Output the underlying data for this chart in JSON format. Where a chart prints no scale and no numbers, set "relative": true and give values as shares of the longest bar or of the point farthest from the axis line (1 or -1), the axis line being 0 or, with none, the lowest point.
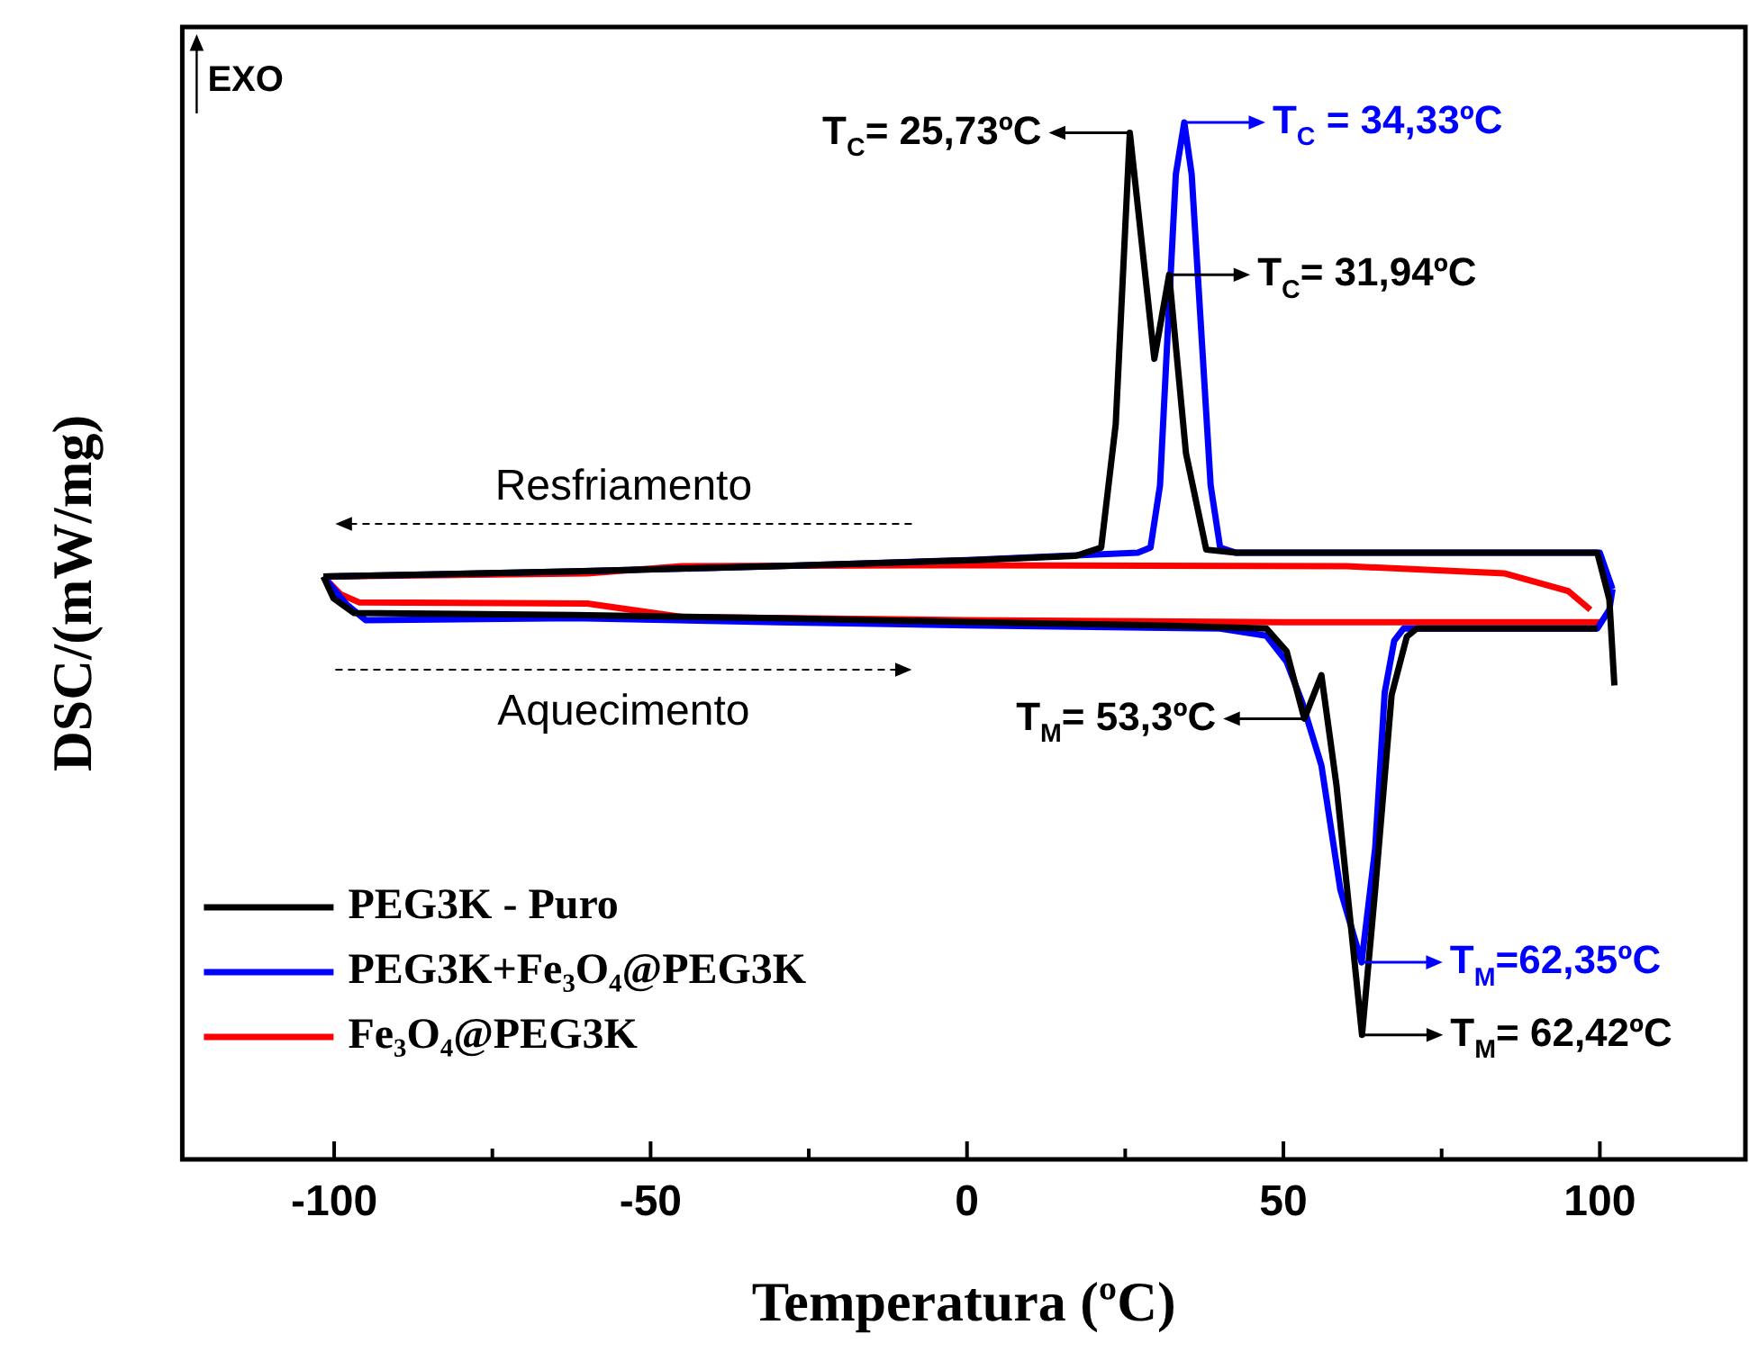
{
  "chart_data": {
    "type": "line",
    "relative": true,
    "xlabel": "Temperatura (ºC)",
    "ylabel": "DSC/(mW/mg)",
    "xlim": [
      -124,
      123
    ],
    "xticks": [
      -100,
      {
        "value": -75,
        "label": null
      },
      -50,
      {
        "value": -25,
        "label": null
      },
      0,
      {
        "value": 25,
        "label": null
      },
      50,
      {
        "value": 75,
        "label": null
      },
      100
    ],
    "legend": "bottom left",
    "tick_labels": "x",
    "series": [
      {
        "name": "PEG3K - Puro",
        "color": "#000000",
        "x": [
          -101.7,
          -100.1,
          -96.9,
          -62.1,
          -30.4,
          1.3,
          30,
          47.3,
          50.5,
          53.3,
          56,
          58.4,
          62.42,
          64.5,
          67.1,
          69.5,
          71.1,
          99.6
        ],
        "values": [
          0.562,
          0.541,
          0.527,
          0.525,
          0.522,
          0.518,
          0.515,
          0.512,
          0.49,
          0.425,
          0.467,
          0.36,
          0.12,
          0.26,
          0.448,
          0.504,
          0.512,
          0.512
        ]
      },
      {
        "color": "#000000",
        "x": [
          -101.7,
          -62.1,
          -30.4,
          1.3,
          17.2,
          21.2,
          23.5,
          25.73,
          29.6,
          31.94,
          34.6,
          37.8,
          42.5,
          99.6,
          101.5,
          102.3
        ],
        "values": [
          0.562,
          0.567,
          0.572,
          0.578,
          0.582,
          0.59,
          0.709,
          0.99,
          0.772,
          0.853,
          0.681,
          0.588,
          0.585,
          0.585,
          0.54,
          0.457
        ]
      },
      {
        "name": "PEG3K+Fe₃O₄@PEG3K",
        "color": "#0000ff",
        "x": [
          -101.7,
          -98,
          -95,
          -62,
          -30,
          0,
          40,
          47.3,
          50.5,
          53,
          56,
          59,
          62.35,
          64.5,
          66,
          67.5,
          69,
          99.6,
          101.5,
          102
        ],
        "values": [
          0.562,
          0.535,
          0.52,
          0.522,
          0.518,
          0.515,
          0.512,
          0.505,
          0.48,
          0.44,
          0.38,
          0.26,
          0.19,
          0.3,
          0.45,
          0.5,
          0.512,
          0.512,
          0.53,
          0.55
        ]
      },
      {
        "color": "#0000ff",
        "x": [
          -101.7,
          -62,
          -30,
          0,
          27,
          29,
          30.5,
          31.9,
          33,
          34.33,
          35.5,
          37,
          38.5,
          40,
          42.5,
          100,
          102
        ],
        "values": [
          0.562,
          0.567,
          0.572,
          0.578,
          0.585,
          0.59,
          0.65,
          0.82,
          0.95,
          1,
          0.95,
          0.8,
          0.65,
          0.59,
          0.585,
          0.585,
          0.55
        ]
      },
      {
        "name": "Fe₃O₄@PEG3K",
        "color": "#ff0000",
        "x": [
          -101.7,
          -99,
          -96,
          -60,
          -45,
          0,
          50,
          100
        ],
        "values": [
          0.562,
          0.545,
          0.537,
          0.536,
          0.523,
          0.52,
          0.518,
          0.518
        ]
      },
      {
        "color": "#ff0000",
        "x": [
          -101.7,
          -60,
          -45,
          0,
          60,
          85,
          95,
          98.5
        ],
        "values": [
          0.562,
          0.565,
          0.572,
          0.573,
          0.572,
          0.565,
          0.548,
          0.53
        ]
      }
    ],
    "annotations": [
      {
        "text": "T$_{C}$= 25,73ºC",
        "x": 25.73,
        "y": 0.99
      },
      {
        "text": "T$_{C}$ = 34,33ºC",
        "x": 34.33,
        "y": 1
      },
      {
        "text": "T$_{C}$= 31,94ºC",
        "x": 31.94,
        "y": 0.853
      },
      {
        "text": "T$_{M}$= 53,3ºC",
        "x": 53.3,
        "y": 0.425
      },
      {
        "text": "T$_{M}$=62,35ºC",
        "x": 62.35,
        "y": 0.19
      },
      {
        "text": "T$_{M}$= 62,42ºC",
        "x": 62.42,
        "y": 0.12
      },
      "EXO",
      "Resfriamento",
      "Aquecimento"
    ]
  }
}
